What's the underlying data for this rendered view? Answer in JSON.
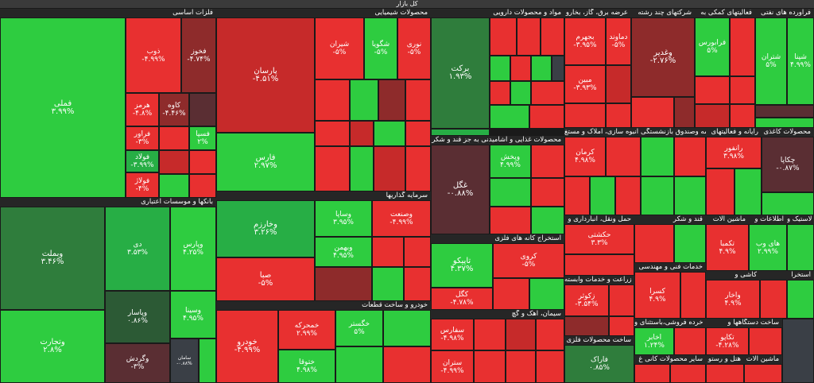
{
  "market_title": "کل بازار",
  "sectors": {
    "metals": "فلزات اساسی",
    "chem": "محصولات شیمیایی",
    "pharma": "مواد و محصولات دارویی",
    "power": "عرضه برق، گاز، بخارو",
    "multi": "شرکتهای چند رشته",
    "support": "فعالیتهای کمکی به",
    "it": "فراورده های نفتی",
    "banks": "بانکها و موسسات اعتباری",
    "invest": "سرمایه گذاریها",
    "food": "محصولات غذایی و آشامیدنی به جز قند و شکر",
    "realestate": "انبوه سازی، املاک و مستغ",
    "insurance": "بیمه وصندوق بازنشستگی",
    "computer": "رایانه و فعالیتهای",
    "paper": "محصولات کاغذی",
    "mining": "استخراج کانه های فلزی",
    "transport": "حمل ونقل، انبارداری و",
    "sugar": "قند و شکر",
    "machinery": "ماشین آلات",
    "telecom": "اطلاعات و",
    "rubber": "لاستیک و",
    "engineering": "خدمات فنی و مهندسی",
    "agri": "زراعت و خدمات وابسته",
    "retail": "خرده فروشی،باستثنای و",
    "auto": "خودرو و ساخت قطعات",
    "cement": "سیمان، آهک و گچ",
    "metalprod": "ساخت محصولات فلزی",
    "nonmetal": "سایر محصولات کانی غ",
    "hotel": "هتل و رستو",
    "electric": "ماشین آلات",
    "medical": "ساخت دستگاهها و",
    "kashi": "کاشی و",
    "construction": "استخرا"
  },
  "tiles": {
    "femeli": {
      "name": "فملی",
      "pct": "۳.۹۹%"
    },
    "foolad": {
      "name": "فولاد",
      "pct": "-۳.۹۹%"
    },
    "zob": {
      "name": "ذوب",
      "pct": "-۴.۹۹%"
    },
    "fkhoz": {
      "name": "فخوز",
      "pct": "-۴.۷۴%"
    },
    "hormoz": {
      "name": "هرمز",
      "pct": "-۴.۸%"
    },
    "kaveh": {
      "name": "کاوه",
      "pct": "-۴.۴۶%"
    },
    "faravar": {
      "name": "فراور",
      "pct": "-۳%"
    },
    "folazt": {
      "name": "فولاژ",
      "pct": "-۴%"
    },
    "faspa": {
      "name": "فسپا",
      "pct": "۲%"
    },
    "kharazm": {
      "name": "فارس",
      "pct": "۲.۹۷%"
    },
    "parsan": {
      "name": "پارسان",
      "pct": "-۴.۵۱%"
    },
    "shiran": {
      "name": "شیران",
      "pct": "-۵%"
    },
    "shegoya": {
      "name": "شگویا",
      "pct": "-۵%"
    },
    "noori": {
      "name": "نوری",
      "pct": "-۵%"
    },
    "barekat": {
      "name": "برکت",
      "pct": "۱.۹۳%"
    },
    "vebmelat": {
      "name": "وبملت",
      "pct": "۳.۴۶%"
    },
    "vtejarat": {
      "name": "وتجارت",
      "pct": "۲.۸%"
    },
    "di": {
      "name": "دی",
      "pct": "۳.۵۳%"
    },
    "vpars": {
      "name": "وپارس",
      "pct": "۴.۲۵%"
    },
    "vpasar": {
      "name": "وپاسار",
      "pct": "۰.۸۶%"
    },
    "vsina": {
      "name": "وسینا",
      "pct": "۴.۹۵%"
    },
    "vgardesh": {
      "name": "وگردش",
      "pct": "-۳%"
    },
    "saman": {
      "name": "سامان",
      "pct": "-۰.۸۸%"
    },
    "vkharazm": {
      "name": "وخارزم",
      "pct": "۳.۲۶%"
    },
    "vsapa": {
      "name": "وساپا",
      "pct": "۳.۹۵%"
    },
    "vsanat": {
      "name": "وصنعت",
      "pct": "-۴.۹۹%"
    },
    "vbahman": {
      "name": "وبهمن",
      "pct": "۴.۹۵%"
    },
    "sapa": {
      "name": "صبا",
      "pct": "-۵%"
    },
    "khodro": {
      "name": "خودرو",
      "pct": "-۴.۹۹%"
    },
    "khemehreh": {
      "name": "خمحرکه",
      "pct": "۲.۹۹%"
    },
    "khegostar": {
      "name": "خگستر",
      "pct": "۵%"
    },
    "khatoka": {
      "name": "ختوقا",
      "pct": "۴.۹۸%"
    },
    "ghaza": {
      "name": "غگل",
      "pct": "-۰.۸۸%"
    },
    "tapico": {
      "name": "تاپیکو",
      "pct": "۴.۳۷%"
    },
    "kegol": {
      "name": "کگل",
      "pct": "-۴.۷۸%"
    },
    "korooz": {
      "name": "کروی",
      "pct": "-۵%"
    },
    "chekapa": {
      "name": "چکاپا",
      "pct": "-۰.۸۷%"
    },
    "vaghadir": {
      "name": "وغدیر",
      "pct": "-۲.۷۶%"
    },
    "dalgoz": {
      "name": "وپخش",
      "pct": "۴.۹۹%"
    },
    "simorgh": {
      "name": "سفارس",
      "pct": "-۴.۹۸%"
    },
    "sterj": {
      "name": "ستران",
      "pct": "-۴.۹۹%"
    },
    "farak": {
      "name": "فاراک",
      "pct": "۰.۸۵%"
    },
    "hafarsa": {
      "name": "حکشتی",
      "pct": "۳.۳%"
    },
    "zekoosar": {
      "name": "زکوثر",
      "pct": "-۳.۵۴%"
    },
    "mabim": {
      "name": "مبین",
      "pct": "-۳.۹۳%"
    },
    "thermal": {
      "name": "بجهرم",
      "pct": "-۳.۹۵%"
    },
    "dmotahed": {
      "name": "دماوند",
      "pct": "-۵%"
    },
    "shpna": {
      "name": "شپنا",
      "pct": "۴.۹۹%"
    },
    "shabandar": {
      "name": "شتران",
      "pct": "۵%"
    },
    "famidar": {
      "name": "فرابورس",
      "pct": "۵%"
    },
    "ranfor": {
      "name": "رانفور",
      "pct": "۳.۹۸%"
    },
    "harak": {
      "name": "کرمان",
      "pct": "۴.۹۸%"
    },
    "teksh": {
      "name": "تکمبا",
      "pct": "۴.۹%"
    },
    "hesina": {
      "name": "های وب",
      "pct": "۲.۹۹%"
    },
    "ksima": {
      "name": "کسرا",
      "pct": "۴.۹%"
    },
    "akhaber": {
      "name": "اخابر",
      "pct": "۱.۲۴%"
    },
    "taghiran": {
      "name": "تکاپو",
      "pct": "-۴.۲۸%"
    },
    "vakharaz": {
      "name": "واخار",
      "pct": "۴.۹%"
    }
  }
}
